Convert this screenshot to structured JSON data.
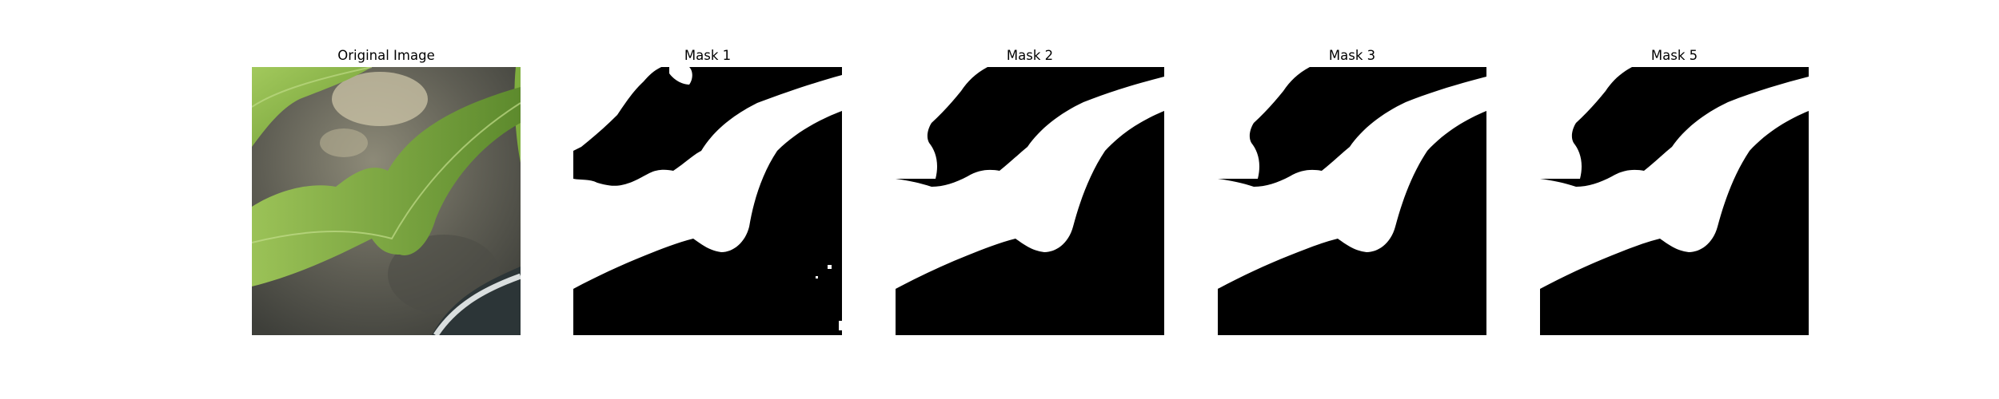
{
  "figure": {
    "panels": [
      {
        "title": "Original Image",
        "kind": "photo"
      },
      {
        "title": "Mask 1",
        "kind": "mask"
      },
      {
        "title": "Mask 2",
        "kind": "mask"
      },
      {
        "title": "Mask 3",
        "kind": "mask"
      },
      {
        "title": "Mask 5",
        "kind": "mask"
      }
    ]
  },
  "colors": {
    "mask_background": "#000000",
    "mask_foreground": "#ffffff",
    "leaf_light": "#8cb84a",
    "leaf_dark": "#5e8a2e",
    "soil": "#6b6a5e",
    "soil_dark": "#4a4a42",
    "highlight": "#cfc9ae",
    "pot": "#2a3436"
  }
}
